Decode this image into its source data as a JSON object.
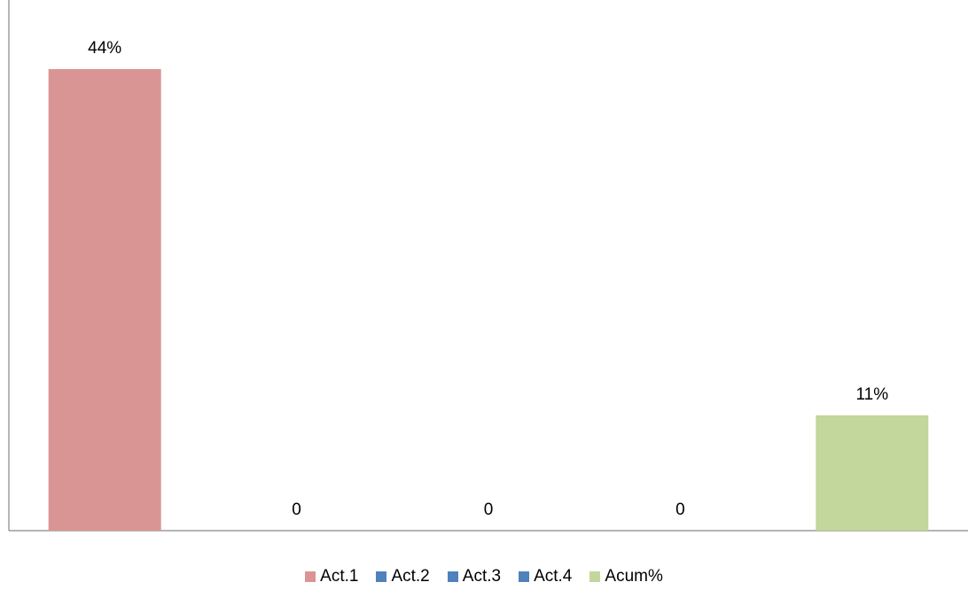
{
  "chart_data": {
    "type": "bar",
    "title": "",
    "xlabel": "",
    "ylabel": "",
    "ylim": [
      0,
      0.44
    ],
    "grid": false,
    "legend_position": "bottom",
    "series": [
      {
        "name": "Act.1",
        "value": 0.44,
        "label": "44%",
        "color": "#d99594"
      },
      {
        "name": "Act.2",
        "value": 0,
        "label": "0",
        "color": "#4f81bd"
      },
      {
        "name": "Act.3",
        "value": 0,
        "label": "0",
        "color": "#4f81bd"
      },
      {
        "name": "Act.4",
        "value": 0,
        "label": "0",
        "color": "#4f81bd"
      },
      {
        "name": "Acum%",
        "value": 0.11,
        "label": "11%",
        "color": "#c3d69b"
      }
    ]
  }
}
